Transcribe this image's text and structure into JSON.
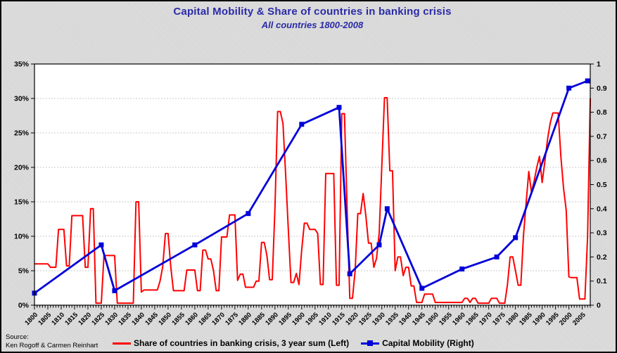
{
  "title": "Capital Mobility & Share of countries in banking crisis",
  "subtitle": "All countries 1800-2008",
  "source": {
    "label": "Source:",
    "authors": "Ken Rogoff & Carmen Reinhart"
  },
  "legend": {
    "items": [
      {
        "label": "Share of countries in banking crisis, 3 year sum (Left)",
        "series": "banking-crisis"
      },
      {
        "label": "Capital Mobility (Right)",
        "series": "capital-mobility"
      }
    ]
  },
  "colors": {
    "title_text": "#2b2ba8",
    "crisis_series": "#ff0000",
    "capital_mobility_series": "#0000d9",
    "gridline": "#c9c9c9",
    "plot_background": "#ffffff",
    "axis": "#000000"
  },
  "chart_data": {
    "type": "line",
    "title": "Capital Mobility & Share of countries in banking crisis",
    "subtitle": "All countries 1800-2008",
    "grid": "horizontal-dotted",
    "legend_position": "bottom",
    "x_axis": {
      "min": 1800,
      "max": 2008,
      "minor_tick_step": 1,
      "label_step": 5,
      "tick_labels": [
        "1800",
        "1805",
        "1810",
        "1815",
        "1820",
        "1825",
        "1830",
        "1835",
        "1840",
        "1845",
        "1850",
        "1855",
        "1860",
        "1865",
        "1870",
        "1875",
        "1880",
        "1885",
        "1890",
        "1895",
        "1900",
        "1905",
        "1910",
        "1915",
        "1920",
        "1925",
        "1930",
        "1935",
        "1940",
        "1945",
        "1950",
        "1955",
        "1960",
        "1965",
        "1970",
        "1975",
        "1980",
        "1985",
        "1990",
        "1995",
        "2000",
        "2005"
      ]
    },
    "left_axis": {
      "min": 0,
      "max": 35,
      "tick_step": 5,
      "unit": "%",
      "tick_labels": [
        "0%",
        "5%",
        "10%",
        "15%",
        "20%",
        "25%",
        "30%",
        "35%"
      ]
    },
    "right_axis": {
      "min": 0,
      "max": 1,
      "tick_step": 0.1,
      "tick_labels": [
        "0",
        "0.1",
        "0.2",
        "0.3",
        "0.4",
        "0.5",
        "0.6",
        "0.7",
        "0.8",
        "0.9",
        "1"
      ]
    },
    "series": [
      {
        "name": "Share of countries in banking crisis, 3 year sum (Left)",
        "axis": "left",
        "style": "line",
        "x_start": 1800,
        "x_step": 1,
        "values": [
          6,
          6,
          6,
          6,
          6,
          6,
          5.5,
          5.5,
          5.5,
          11,
          11,
          11,
          5.7,
          5.7,
          13,
          13,
          13,
          13,
          13,
          5.5,
          5.5,
          14,
          14,
          0.3,
          0.3,
          0.3,
          7.2,
          7.2,
          7.2,
          7.2,
          7.2,
          0.3,
          0.3,
          0.3,
          0.3,
          0.3,
          0.3,
          0.3,
          15,
          15,
          1.9,
          2.2,
          2.2,
          2.2,
          2.2,
          2.2,
          2.2,
          3.5,
          5.6,
          10.4,
          10.4,
          5.6,
          2.1,
          2.1,
          2.1,
          2.1,
          2.1,
          5.1,
          5.1,
          5.1,
          5.1,
          2.1,
          2.1,
          8,
          8,
          6.7,
          6.7,
          5,
          2.1,
          2.1,
          9.9,
          9.9,
          9.9,
          13.1,
          13.1,
          13.1,
          3.6,
          4.5,
          4.5,
          2.6,
          2.6,
          2.6,
          2.6,
          3.5,
          3.5,
          9.1,
          9.1,
          7.2,
          3.7,
          3.7,
          14,
          28.1,
          28.1,
          26.4,
          19,
          11,
          3.3,
          3.3,
          4.6,
          3,
          8,
          11.9,
          11.9,
          11,
          11,
          11,
          10.4,
          3,
          3,
          19.1,
          19.1,
          19.1,
          19.1,
          2.9,
          2.9,
          27.8,
          27.8,
          14,
          1,
          1,
          5,
          13.3,
          13.3,
          16.2,
          13,
          9,
          9,
          5.5,
          6.8,
          10.5,
          20.4,
          30.1,
          30.1,
          19.5,
          19.5,
          5,
          7,
          7,
          4.3,
          5.5,
          5.5,
          2.8,
          2.8,
          0.4,
          0.4,
          0.4,
          1.6,
          1.6,
          1.6,
          1.6,
          0.4,
          0.4,
          0.4,
          0.4,
          0.4,
          0.4,
          0.4,
          0.4,
          0.4,
          0.4,
          0.4,
          1,
          1,
          0.4,
          1,
          1,
          0.3,
          0.3,
          0.3,
          0.3,
          0.3,
          1,
          1,
          1,
          0.3,
          0.3,
          0.3,
          3,
          7,
          7,
          5,
          2.9,
          2.9,
          10,
          14.8,
          19.4,
          16.4,
          18,
          20,
          21.6,
          17.8,
          20.8,
          24,
          26.4,
          27.9,
          27.9,
          27.9,
          21.6,
          17,
          13.8,
          4.1,
          4,
          4,
          4,
          0.9,
          0.9,
          0.9,
          10,
          30
        ]
      },
      {
        "name": "Capital Mobility (Right)",
        "axis": "right",
        "style": "line-with-square-markers",
        "points": [
          [
            1800,
            0.05
          ],
          [
            1825,
            0.25
          ],
          [
            1830,
            0.06
          ],
          [
            1860,
            0.25
          ],
          [
            1880,
            0.38
          ],
          [
            1900,
            0.75
          ],
          [
            1914,
            0.82
          ],
          [
            1918,
            0.13
          ],
          [
            1929,
            0.25
          ],
          [
            1932,
            0.4
          ],
          [
            1945,
            0.07
          ],
          [
            1960,
            0.15
          ],
          [
            1973,
            0.2
          ],
          [
            1980,
            0.28
          ],
          [
            2000,
            0.9
          ],
          [
            2007,
            0.93
          ]
        ]
      }
    ]
  }
}
